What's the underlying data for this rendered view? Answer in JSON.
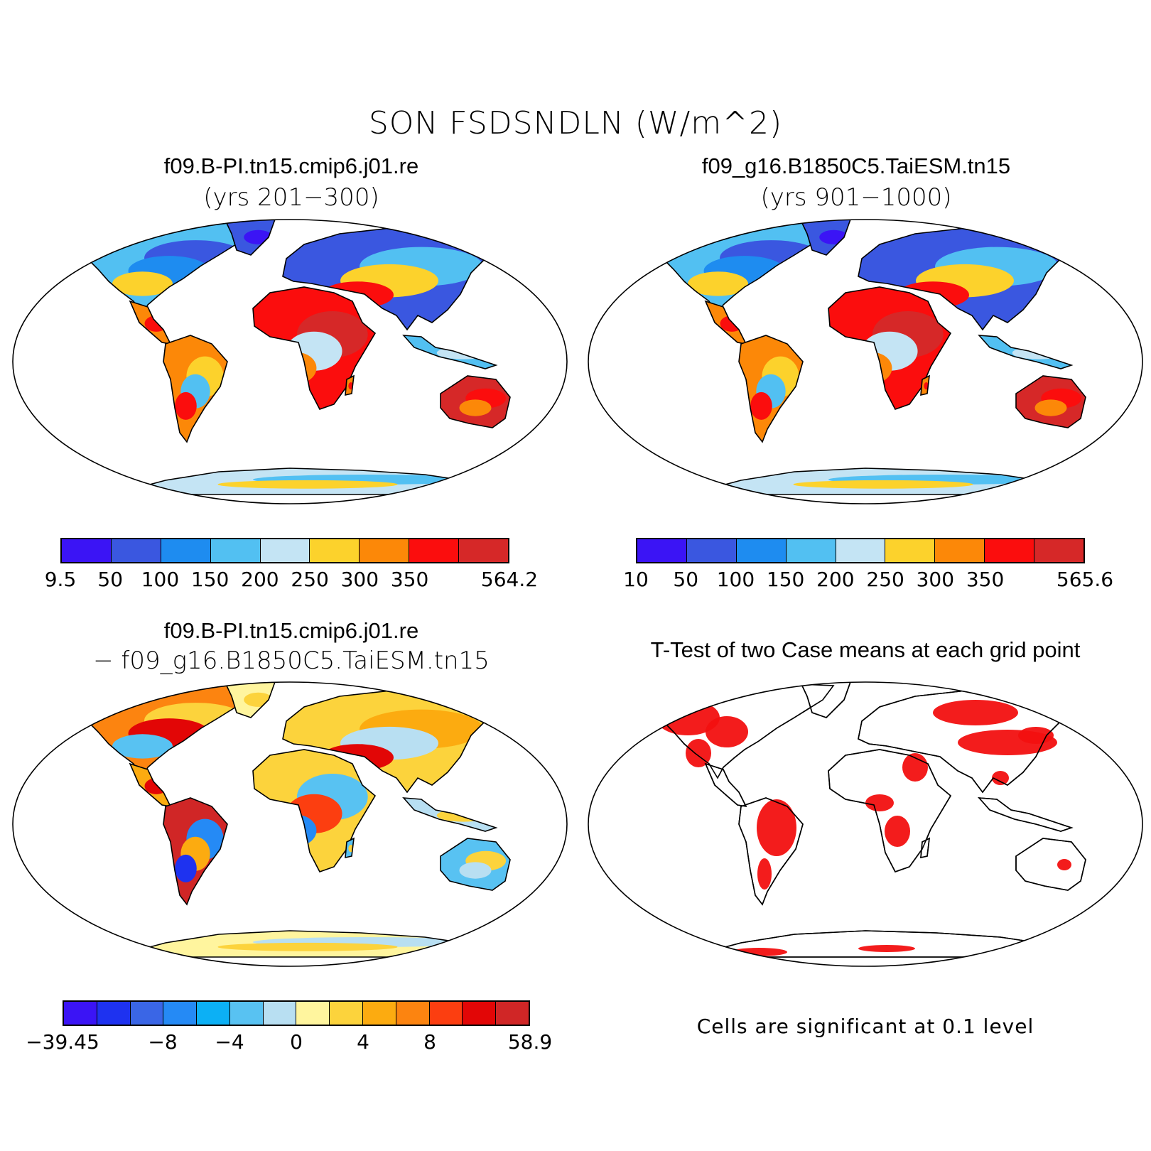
{
  "main_title": "SON FSDSNDLN (W/m^2)",
  "panels": [
    {
      "title": "f09.B-PI.tn15.cmip6.j01.re",
      "subtitle": "(yrs 201−300)",
      "map_kind": "mean",
      "colorbar": {
        "colors": [
          "#3b14f5",
          "#3a57e0",
          "#1e8cf0",
          "#52c0f2",
          "#c4e4f4",
          "#fcd22c",
          "#fc8808",
          "#fb0d0d",
          "#d62828"
        ],
        "labels": [
          "9.5",
          "50",
          "100",
          "150",
          "200",
          "250",
          "300",
          "350",
          "564.2"
        ],
        "label_edges": [
          0,
          1,
          2,
          3,
          4,
          5,
          6,
          7,
          9
        ]
      }
    },
    {
      "title": "f09_g16.B1850C5.TaiESM.tn15",
      "subtitle": "(yrs 901−1000)",
      "map_kind": "mean",
      "colorbar": {
        "colors": [
          "#3b14f5",
          "#3a57e0",
          "#1e8cf0",
          "#52c0f2",
          "#c4e4f4",
          "#fcd22c",
          "#fc8808",
          "#fb0d0d",
          "#d62828"
        ],
        "labels": [
          "10",
          "50",
          "100",
          "150",
          "200",
          "250",
          "300",
          "350",
          "565.6"
        ],
        "label_edges": [
          0,
          1,
          2,
          3,
          4,
          5,
          6,
          7,
          9
        ]
      }
    },
    {
      "title": "f09.B-PI.tn15.cmip6.j01.re",
      "subtitle": "− f09_g16.B1850C5.TaiESM.tn15",
      "map_kind": "diff",
      "colorbar": {
        "colors": [
          "#3b14f5",
          "#1e32f0",
          "#3a66e6",
          "#258af5",
          "#0cb0f5",
          "#58c2f2",
          "#b8dff2",
          "#fff59e",
          "#fcd33c",
          "#fcab10",
          "#fc8410",
          "#fc3e10",
          "#e20606",
          "#d02626"
        ],
        "labels": [
          "−39.45",
          "−8",
          "−4",
          "0",
          "4",
          "8",
          "58.9"
        ],
        "label_edges": [
          0,
          3,
          5,
          7,
          9,
          11,
          14
        ]
      }
    },
    {
      "title": "T-Test of two Case means at each grid point",
      "map_kind": "ttest",
      "note": "Cells are significant at 0.1 level"
    }
  ]
}
